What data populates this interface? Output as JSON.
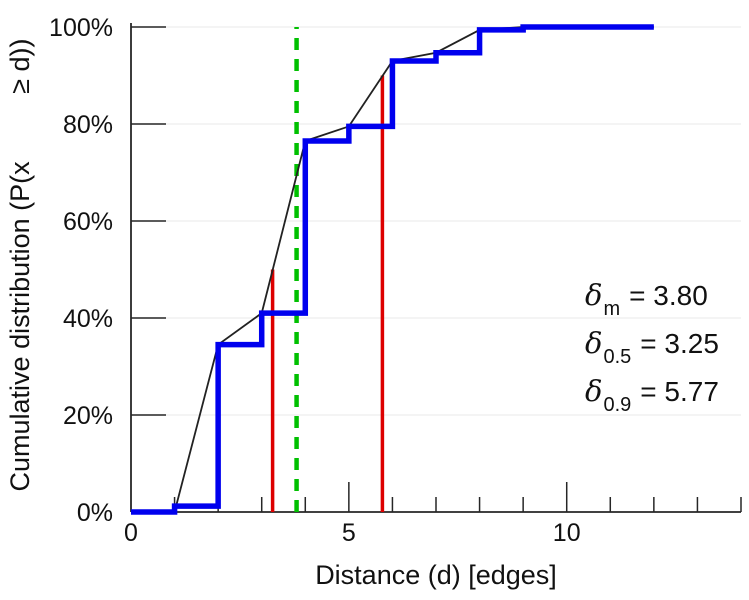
{
  "chart_data": {
    "type": "line",
    "title": "",
    "xlabel": "Distance (d) [edges]",
    "ylabel": "Cumulative distribution (P(x         ≥ d))",
    "xlim": [
      0,
      14
    ],
    "ylim": [
      0,
      100
    ],
    "grid": "horizontal light gray lines at every 20%",
    "legend_position": "none",
    "x_major_ticks": [
      {
        "v": 0,
        "label": "0"
      },
      {
        "v": 5,
        "label": "5"
      },
      {
        "v": 10,
        "label": "10"
      }
    ],
    "x_minor_ticks": [
      1,
      2,
      3,
      4,
      6,
      7,
      8,
      9,
      11,
      12,
      13,
      14
    ],
    "y_ticks": [
      {
        "v": 0,
        "label": "0%"
      },
      {
        "v": 20,
        "label": "20%"
      },
      {
        "v": 40,
        "label": "40%"
      },
      {
        "v": 60,
        "label": "60%"
      },
      {
        "v": 80,
        "label": "80%"
      },
      {
        "v": 100,
        "label": "100%"
      }
    ],
    "series": [
      {
        "name": "empirical cumulative distribution (step function)",
        "style": "step",
        "color": "#0000ee",
        "width": 5.5,
        "points": [
          [
            0,
            0
          ],
          [
            1,
            1.2
          ],
          [
            2,
            34.5
          ],
          [
            3,
            41
          ],
          [
            4,
            76.5
          ],
          [
            5,
            79.5
          ],
          [
            6,
            93
          ],
          [
            7,
            94.7
          ],
          [
            8,
            99.4
          ],
          [
            9,
            100
          ]
        ],
        "x_end": 12
      },
      {
        "name": "linear interpolation of CDF",
        "style": "line",
        "color": "#222222",
        "width": 1.8,
        "points": [
          [
            1,
            0
          ],
          [
            2,
            34.5
          ],
          [
            3,
            41
          ],
          [
            4,
            76.5
          ],
          [
            5,
            79.5
          ],
          [
            6,
            93
          ],
          [
            7,
            94.7
          ],
          [
            8,
            99.4
          ],
          [
            9,
            100
          ],
          [
            12,
            100
          ]
        ]
      }
    ],
    "vlines": [
      {
        "name": "median-marker",
        "x": 3.25,
        "top": 50,
        "color": "#dd0000",
        "dash": false,
        "width": 3.5
      },
      {
        "name": "p90-marker",
        "x": 5.77,
        "top": 90,
        "color": "#dd0000",
        "dash": false,
        "width": 3.5
      },
      {
        "name": "mean-marker",
        "x": 3.8,
        "top": 100,
        "color": "#00c000",
        "dash": true,
        "width": 4.5
      }
    ],
    "colors": {
      "axis": "#262626",
      "grid": "#ededed",
      "text": "#111111",
      "step": "#0000ee",
      "interp": "#222222",
      "red": "#dd0000",
      "green": "#00c000"
    },
    "stats": [
      {
        "symbol": "δ",
        "subscript": "m",
        "value": "= 3.80"
      },
      {
        "symbol": "δ",
        "subscript": "0.5",
        "value": "= 3.25"
      },
      {
        "symbol": "δ",
        "subscript": "0.9",
        "value": "= 5.77"
      }
    ]
  }
}
